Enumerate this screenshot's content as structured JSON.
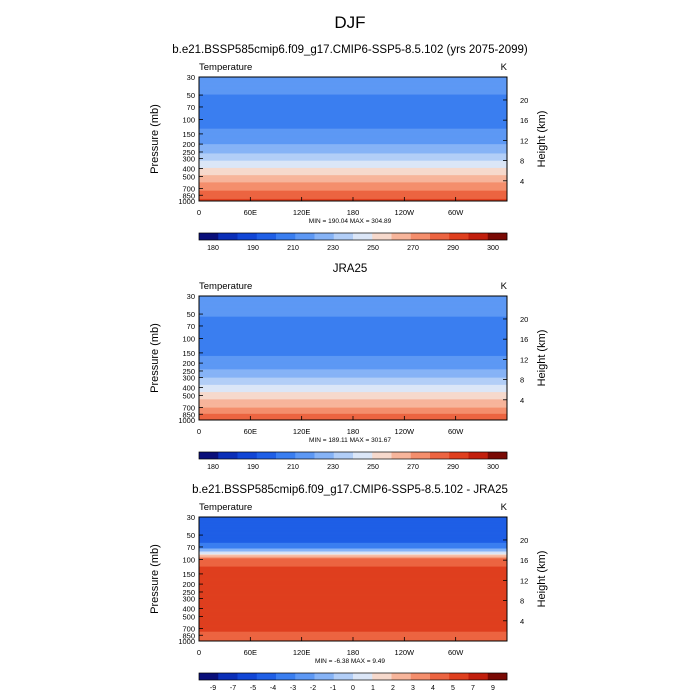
{
  "page_title": "DJF",
  "chart_data": [
    {
      "type": "heatmap",
      "title": "b.e21.BSSP585cmip6.f09_g17.CMIP6-SSP5-8.5.102 (yrs 2075-2099)",
      "variable": "Temperature",
      "units": "K",
      "ylabel": "Pressure (mb)",
      "y2label": "Height (km)",
      "x_ticks": [
        "0",
        "60E",
        "120E",
        "180",
        "120W",
        "60W"
      ],
      "y_ticks": [
        "30",
        "50",
        "70",
        "100",
        "150",
        "200",
        "250",
        "300",
        "400",
        "500",
        "700",
        "850",
        "1000"
      ],
      "y2_ticks": [
        "20",
        "16",
        "12",
        "8",
        "4"
      ],
      "stats": "MIN = 190.04  MAX = 304.89",
      "min": 190.04,
      "max": 304.89,
      "colorbar_labels": [
        "180",
        "190",
        "210",
        "230",
        "250",
        "270",
        "290",
        "300"
      ],
      "levels": [
        180,
        185,
        190,
        200,
        210,
        220,
        230,
        240,
        250,
        260,
        270,
        280,
        290,
        295,
        300
      ],
      "profile": [
        {
          "p": 30,
          "t": 212
        },
        {
          "p": 50,
          "t": 210
        },
        {
          "p": 70,
          "t": 208
        },
        {
          "p": 100,
          "t": 207
        },
        {
          "p": 150,
          "t": 212
        },
        {
          "p": 200,
          "t": 220
        },
        {
          "p": 250,
          "t": 228
        },
        {
          "p": 300,
          "t": 236
        },
        {
          "p": 400,
          "t": 251
        },
        {
          "p": 500,
          "t": 262
        },
        {
          "p": 700,
          "t": 277
        },
        {
          "p": 850,
          "t": 286
        },
        {
          "p": 1000,
          "t": 293
        }
      ]
    },
    {
      "type": "heatmap",
      "title": "JRA25",
      "variable": "Temperature",
      "units": "K",
      "ylabel": "Pressure (mb)",
      "y2label": "Height (km)",
      "x_ticks": [
        "0",
        "60E",
        "120E",
        "180",
        "120W",
        "60W"
      ],
      "y_ticks": [
        "30",
        "50",
        "70",
        "100",
        "150",
        "200",
        "250",
        "300",
        "400",
        "500",
        "700",
        "850",
        "1000"
      ],
      "y2_ticks": [
        "20",
        "16",
        "12",
        "8",
        "4"
      ],
      "stats": "MIN = 189.11  MAX = 301.67",
      "min": 189.11,
      "max": 301.67,
      "colorbar_labels": [
        "180",
        "190",
        "210",
        "230",
        "250",
        "270",
        "290",
        "300"
      ],
      "levels": [
        180,
        185,
        190,
        200,
        210,
        220,
        230,
        240,
        250,
        260,
        270,
        280,
        290,
        295,
        300
      ],
      "profile": [
        {
          "p": 30,
          "t": 214
        },
        {
          "p": 50,
          "t": 211
        },
        {
          "p": 70,
          "t": 207
        },
        {
          "p": 100,
          "t": 203
        },
        {
          "p": 150,
          "t": 208
        },
        {
          "p": 200,
          "t": 214
        },
        {
          "p": 250,
          "t": 222
        },
        {
          "p": 300,
          "t": 230
        },
        {
          "p": 400,
          "t": 244
        },
        {
          "p": 500,
          "t": 255
        },
        {
          "p": 700,
          "t": 270
        },
        {
          "p": 850,
          "t": 280
        },
        {
          "p": 1000,
          "t": 287
        }
      ]
    },
    {
      "type": "heatmap",
      "title": "b.e21.BSSP585cmip6.f09_g17.CMIP6-SSP5-8.5.102 - JRA25",
      "variable": "Temperature",
      "units": "K",
      "ylabel": "Pressure (mb)",
      "y2label": "Height (km)",
      "x_ticks": [
        "0",
        "60E",
        "120E",
        "180",
        "120W",
        "60W"
      ],
      "y_ticks": [
        "30",
        "50",
        "70",
        "100",
        "150",
        "200",
        "250",
        "300",
        "400",
        "500",
        "700",
        "850",
        "1000"
      ],
      "y2_ticks": [
        "20",
        "16",
        "12",
        "8",
        "4"
      ],
      "stats": "MIN = -6.38  MAX =  9.49",
      "min": -6.38,
      "max": 9.49,
      "colorbar_labels": [
        "-9",
        "-7",
        "-5",
        "-4",
        "-3",
        "-2",
        "-1",
        "0",
        "1",
        "2",
        "3",
        "4",
        "5",
        "7",
        "9"
      ],
      "levels": [
        -9,
        -7,
        -5,
        -4,
        -3,
        -2,
        -1,
        0,
        1,
        2,
        3,
        4,
        5,
        7,
        9
      ],
      "profile": [
        {
          "p": 30,
          "t": -4.5
        },
        {
          "p": 50,
          "t": -4.8
        },
        {
          "p": 70,
          "t": -3.5
        },
        {
          "p": 100,
          "t": 4.5
        },
        {
          "p": 150,
          "t": 5.5
        },
        {
          "p": 200,
          "t": 6.5
        },
        {
          "p": 250,
          "t": 6.5
        },
        {
          "p": 300,
          "t": 6.2
        },
        {
          "p": 400,
          "t": 5.8
        },
        {
          "p": 500,
          "t": 5.5
        },
        {
          "p": 700,
          "t": 5.2
        },
        {
          "p": 850,
          "t": 4.8
        },
        {
          "p": 1000,
          "t": 4.5
        }
      ]
    }
  ],
  "colors": {
    "temperature_palette": [
      "#0a0f7a",
      "#0b2fb8",
      "#1146d6",
      "#1f5fe6",
      "#3a7ef0",
      "#5d98f4",
      "#86b3f6",
      "#b2cef7",
      "#dbe6f7",
      "#f6d9cc",
      "#f7b59b",
      "#f48e6c",
      "#ec6441",
      "#df3f1e",
      "#c21f0d",
      "#7a0a05"
    ],
    "difference_palette": [
      "#0a0f7a",
      "#0b2fb8",
      "#1146d6",
      "#1f5fe6",
      "#3a7ef0",
      "#5d98f4",
      "#86b3f6",
      "#b2cef7",
      "#dbe6f7",
      "#f6d9cc",
      "#f7b59b",
      "#f48e6c",
      "#ec6441",
      "#df3f1e",
      "#c21f0d",
      "#7a0a05"
    ]
  }
}
